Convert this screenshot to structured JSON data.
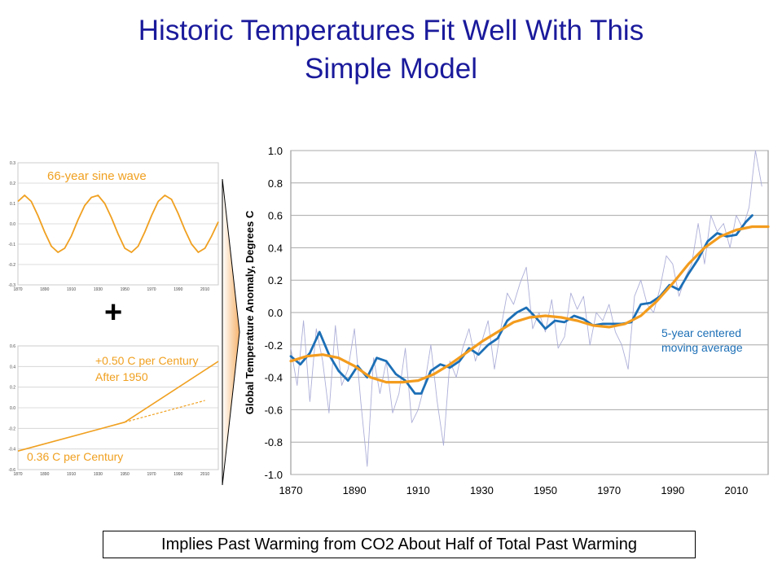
{
  "title_line1": "Historic Temperatures Fit Well With This",
  "title_line2": "Simple Model",
  "plus_sign": "+",
  "caption": "Implies Past Warming from CO2 About Half of Total Past Warming",
  "colors": {
    "title": "#1a1a9c",
    "orange": "#f0a020",
    "blue": "#1c6fb6",
    "annual": "#9ea0d0",
    "grid": "#999999"
  },
  "chart_data": [
    {
      "type": "line",
      "annotation": "66-year sine wave",
      "xlim": [
        1870,
        2020
      ],
      "ylim": [
        -0.3,
        0.3
      ],
      "x_ticks": [
        1870,
        1890,
        1910,
        1930,
        1950,
        1970,
        1990,
        2010
      ],
      "y_ticks": [
        "0.3",
        "0.2",
        "0.1",
        "0.0",
        "-0.1",
        "-0.2",
        "-0.3"
      ],
      "series": [
        {
          "points": [
            [
              1870,
              0.11
            ],
            [
              1875,
              0.14
            ],
            [
              1880,
              0.11
            ],
            [
              1885,
              0.04
            ],
            [
              1890,
              -0.04
            ],
            [
              1895,
              -0.11
            ],
            [
              1900,
              -0.14
            ],
            [
              1905,
              -0.12
            ],
            [
              1910,
              -0.06
            ],
            [
              1915,
              0.02
            ],
            [
              1920,
              0.09
            ],
            [
              1925,
              0.13
            ],
            [
              1930,
              0.14
            ],
            [
              1935,
              0.1
            ],
            [
              1940,
              0.03
            ],
            [
              1945,
              -0.05
            ],
            [
              1950,
              -0.12
            ],
            [
              1955,
              -0.14
            ],
            [
              1960,
              -0.11
            ],
            [
              1965,
              -0.04
            ],
            [
              1970,
              0.04
            ],
            [
              1975,
              0.11
            ],
            [
              1980,
              0.14
            ],
            [
              1985,
              0.12
            ],
            [
              1990,
              0.05
            ],
            [
              1995,
              -0.03
            ],
            [
              2000,
              -0.1
            ],
            [
              2005,
              -0.14
            ],
            [
              2010,
              -0.12
            ],
            [
              2015,
              -0.06
            ],
            [
              2020,
              0.01
            ]
          ]
        }
      ]
    },
    {
      "type": "line",
      "annotations": [
        "+0.50 C per Century",
        "After 1950",
        "0.36 C per Century"
      ],
      "xlim": [
        1870,
        2020
      ],
      "ylim": [
        -0.6,
        0.6
      ],
      "x_ticks": [
        1870,
        1890,
        1910,
        1930,
        1950,
        1970,
        1990,
        2010
      ],
      "y_ticks": [
        "0.6",
        "0.4",
        "0.2",
        "0.0",
        "-0.2",
        "-0.4",
        "-0.6"
      ],
      "series": [
        {
          "style": "solid",
          "points": [
            [
              1870,
              -0.42
            ],
            [
              1950,
              -0.14
            ],
            [
              2020,
              0.45
            ]
          ]
        },
        {
          "style": "dashed",
          "points": [
            [
              1950,
              -0.14
            ],
            [
              2010,
              0.07
            ]
          ]
        }
      ]
    },
    {
      "type": "line",
      "xlim": [
        1870,
        2020
      ],
      "ylim": [
        -1.0,
        1.0
      ],
      "ylabel": "Global Temperature Anomaly, Degrees C",
      "y_ticks": [
        "1.0",
        "0.8",
        "0.6",
        "0.4",
        "0.2",
        "0.0",
        "-0.2",
        "-0.4",
        "-0.6",
        "-0.8",
        "-1.0"
      ],
      "x_ticks": [
        "1870",
        "1890",
        "1910",
        "1930",
        "1950",
        "1970",
        "1990",
        "2010"
      ],
      "annotation_line1": "5-year centered",
      "annotation_line2": "moving average",
      "grid": "horizontal",
      "series": [
        {
          "style": "annual",
          "points": [
            [
              1870,
              -0.22
            ],
            [
              1872,
              -0.45
            ],
            [
              1874,
              -0.05
            ],
            [
              1876,
              -0.55
            ],
            [
              1878,
              -0.1
            ],
            [
              1880,
              -0.3
            ],
            [
              1882,
              -0.62
            ],
            [
              1884,
              -0.08
            ],
            [
              1886,
              -0.45
            ],
            [
              1888,
              -0.35
            ],
            [
              1890,
              -0.1
            ],
            [
              1892,
              -0.55
            ],
            [
              1894,
              -0.95
            ],
            [
              1896,
              -0.28
            ],
            [
              1898,
              -0.5
            ],
            [
              1900,
              -0.3
            ],
            [
              1902,
              -0.62
            ],
            [
              1904,
              -0.5
            ],
            [
              1906,
              -0.22
            ],
            [
              1908,
              -0.68
            ],
            [
              1910,
              -0.6
            ],
            [
              1912,
              -0.45
            ],
            [
              1914,
              -0.2
            ],
            [
              1916,
              -0.55
            ],
            [
              1918,
              -0.82
            ],
            [
              1920,
              -0.3
            ],
            [
              1922,
              -0.4
            ],
            [
              1924,
              -0.22
            ],
            [
              1926,
              -0.1
            ],
            [
              1928,
              -0.3
            ],
            [
              1930,
              -0.18
            ],
            [
              1932,
              -0.05
            ],
            [
              1934,
              -0.35
            ],
            [
              1936,
              -0.1
            ],
            [
              1938,
              0.12
            ],
            [
              1940,
              0.05
            ],
            [
              1942,
              0.18
            ],
            [
              1944,
              0.28
            ],
            [
              1946,
              -0.1
            ],
            [
              1948,
              0.0
            ],
            [
              1950,
              -0.12
            ],
            [
              1952,
              0.08
            ],
            [
              1954,
              -0.22
            ],
            [
              1956,
              -0.15
            ],
            [
              1958,
              0.12
            ],
            [
              1960,
              0.02
            ],
            [
              1962,
              0.1
            ],
            [
              1964,
              -0.2
            ],
            [
              1966,
              0.0
            ],
            [
              1968,
              -0.05
            ],
            [
              1970,
              0.05
            ],
            [
              1972,
              -0.12
            ],
            [
              1974,
              -0.2
            ],
            [
              1976,
              -0.35
            ],
            [
              1978,
              0.1
            ],
            [
              1980,
              0.2
            ],
            [
              1982,
              0.05
            ],
            [
              1984,
              0.0
            ],
            [
              1986,
              0.15
            ],
            [
              1988,
              0.35
            ],
            [
              1990,
              0.3
            ],
            [
              1992,
              0.1
            ],
            [
              1994,
              0.22
            ],
            [
              1996,
              0.3
            ],
            [
              1998,
              0.55
            ],
            [
              2000,
              0.3
            ],
            [
              2002,
              0.6
            ],
            [
              2004,
              0.5
            ],
            [
              2006,
              0.55
            ],
            [
              2008,
              0.4
            ],
            [
              2010,
              0.6
            ],
            [
              2012,
              0.52
            ],
            [
              2014,
              0.65
            ],
            [
              2016,
              1.0
            ],
            [
              2018,
              0.78
            ]
          ]
        },
        {
          "style": "5yr",
          "points": [
            [
              1870,
              -0.27
            ],
            [
              1873,
              -0.32
            ],
            [
              1876,
              -0.25
            ],
            [
              1879,
              -0.12
            ],
            [
              1882,
              -0.26
            ],
            [
              1885,
              -0.36
            ],
            [
              1888,
              -0.42
            ],
            [
              1891,
              -0.33
            ],
            [
              1894,
              -0.4
            ],
            [
              1897,
              -0.28
            ],
            [
              1900,
              -0.3
            ],
            [
              1903,
              -0.38
            ],
            [
              1906,
              -0.42
            ],
            [
              1909,
              -0.5
            ],
            [
              1911,
              -0.5
            ],
            [
              1914,
              -0.36
            ],
            [
              1917,
              -0.32
            ],
            [
              1920,
              -0.34
            ],
            [
              1923,
              -0.3
            ],
            [
              1926,
              -0.22
            ],
            [
              1929,
              -0.26
            ],
            [
              1932,
              -0.2
            ],
            [
              1935,
              -0.16
            ],
            [
              1938,
              -0.05
            ],
            [
              1941,
              0.0
            ],
            [
              1944,
              0.03
            ],
            [
              1947,
              -0.03
            ],
            [
              1950,
              -0.1
            ],
            [
              1953,
              -0.05
            ],
            [
              1956,
              -0.06
            ],
            [
              1959,
              -0.02
            ],
            [
              1962,
              -0.04
            ],
            [
              1965,
              -0.08
            ],
            [
              1968,
              -0.07
            ],
            [
              1971,
              -0.07
            ],
            [
              1974,
              -0.07
            ],
            [
              1977,
              -0.06
            ],
            [
              1980,
              0.05
            ],
            [
              1983,
              0.06
            ],
            [
              1986,
              0.1
            ],
            [
              1989,
              0.17
            ],
            [
              1992,
              0.14
            ],
            [
              1995,
              0.24
            ],
            [
              1998,
              0.33
            ],
            [
              2001,
              0.44
            ],
            [
              2004,
              0.49
            ],
            [
              2007,
              0.47
            ],
            [
              2010,
              0.48
            ],
            [
              2013,
              0.56
            ],
            [
              2015,
              0.6
            ]
          ]
        },
        {
          "style": "model",
          "points": [
            [
              1870,
              -0.3
            ],
            [
              1875,
              -0.27
            ],
            [
              1880,
              -0.26
            ],
            [
              1885,
              -0.28
            ],
            [
              1890,
              -0.33
            ],
            [
              1895,
              -0.4
            ],
            [
              1900,
              -0.43
            ],
            [
              1905,
              -0.43
            ],
            [
              1910,
              -0.42
            ],
            [
              1915,
              -0.38
            ],
            [
              1920,
              -0.32
            ],
            [
              1925,
              -0.25
            ],
            [
              1930,
              -0.18
            ],
            [
              1935,
              -0.12
            ],
            [
              1940,
              -0.06
            ],
            [
              1945,
              -0.03
            ],
            [
              1950,
              -0.02
            ],
            [
              1955,
              -0.03
            ],
            [
              1960,
              -0.05
            ],
            [
              1965,
              -0.08
            ],
            [
              1970,
              -0.09
            ],
            [
              1975,
              -0.07
            ],
            [
              1980,
              -0.02
            ],
            [
              1985,
              0.07
            ],
            [
              1990,
              0.18
            ],
            [
              1995,
              0.3
            ],
            [
              2000,
              0.4
            ],
            [
              2005,
              0.47
            ],
            [
              2010,
              0.51
            ],
            [
              2015,
              0.53
            ],
            [
              2020,
              0.53
            ]
          ]
        }
      ]
    }
  ]
}
